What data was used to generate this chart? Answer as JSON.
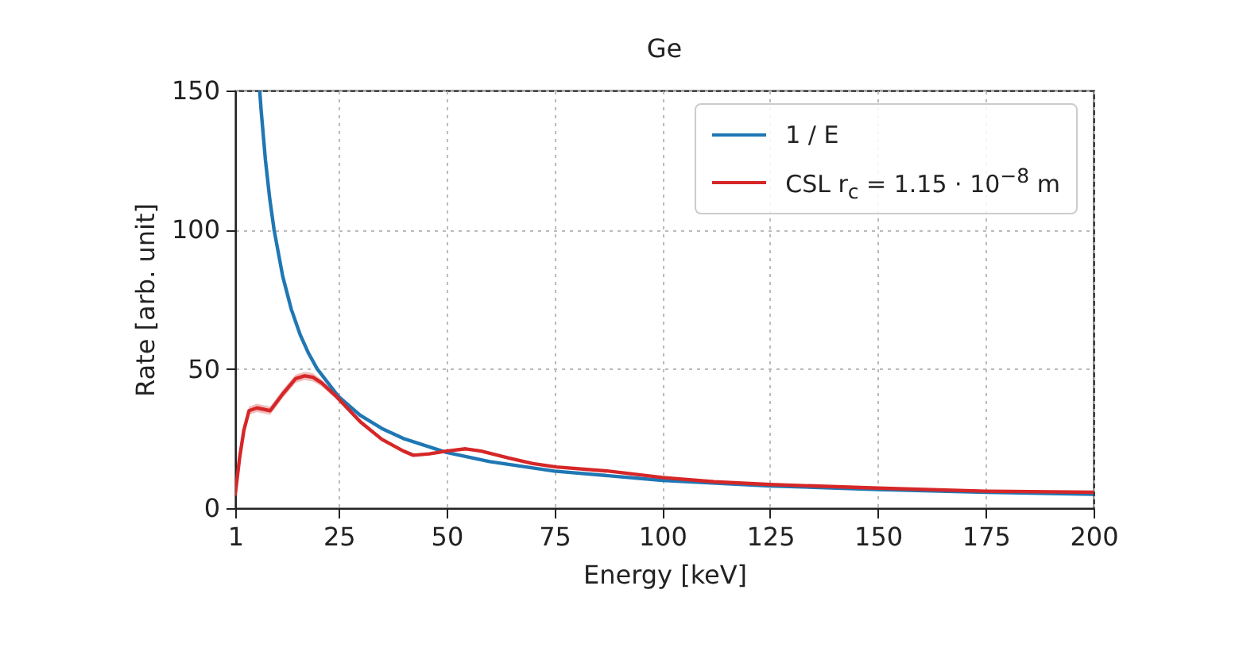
{
  "chart_data": {
    "type": "line",
    "title": "Ge",
    "xlabel": "Energy [keV]",
    "ylabel": "Rate [arb. unit]",
    "xlim": [
      1,
      200
    ],
    "ylim": [
      0,
      150
    ],
    "xticks": [
      1,
      25,
      50,
      75,
      100,
      125,
      150,
      175,
      200
    ],
    "yticks": [
      0,
      50,
      100,
      150
    ],
    "grid": true,
    "legend": "top right",
    "series": [
      {
        "name": "1 / E",
        "color": "#1f77b4",
        "x": [
          6.67,
          7,
          8,
          9,
          10,
          12,
          14,
          16,
          18,
          20,
          25,
          30,
          35,
          40,
          50,
          60,
          75,
          100,
          125,
          150,
          175,
          200
        ],
        "values": [
          150,
          142.9,
          125,
          111.1,
          100,
          83.3,
          71.4,
          62.5,
          55.6,
          50,
          40,
          33.3,
          28.6,
          25,
          20,
          16.7,
          13.3,
          10,
          8,
          6.7,
          5.7,
          5
        ]
      },
      {
        "name": "CSL r$_{c}$ = 1.15 · 10$^{−8}$ m",
        "color": "#d62728",
        "x": [
          1,
          2,
          3,
          4.2,
          6,
          9.1,
          12,
          15,
          17.1,
          19,
          21,
          24.5,
          30,
          35,
          40,
          42.3,
          46,
          50,
          54.4,
          58,
          64.4,
          70,
          75.4,
          87.6,
          100,
          112,
          125,
          150,
          175,
          200
        ],
        "values": [
          5,
          18,
          28,
          35,
          36,
          35,
          41,
          46.5,
          47.5,
          47,
          45,
          40,
          31,
          24.7,
          20.5,
          19,
          19.5,
          20.5,
          21.3,
          20.5,
          18,
          16,
          14.8,
          13.3,
          11,
          9.5,
          8.5,
          7.2,
          6.1,
          5.7
        ],
        "lower": [
          4,
          16.5,
          26.5,
          33.5,
          34.5,
          33.5,
          39.5,
          45,
          46,
          45.5,
          43.8,
          39,
          30.2,
          24,
          20,
          18.5,
          19,
          20,
          20.8,
          20,
          17.6,
          15.7,
          14.5,
          13,
          10.8,
          9.3,
          8.3,
          7,
          6,
          5.6
        ],
        "upper": [
          6,
          19.5,
          29.5,
          36.5,
          37.5,
          36.5,
          42.5,
          48,
          49,
          48.5,
          46.2,
          41,
          31.8,
          25.4,
          21,
          19.5,
          20,
          21,
          21.8,
          21,
          18.4,
          16.3,
          15.1,
          13.6,
          11.2,
          9.7,
          8.7,
          7.4,
          6.2,
          5.8
        ]
      }
    ]
  }
}
